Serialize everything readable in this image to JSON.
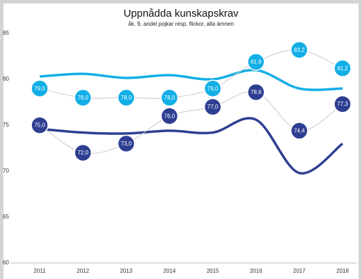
{
  "chart_data": {
    "type": "line",
    "title": "Uppnådda kunskapskrav",
    "subtitle": "åk. 9, andel pojkar resp. flickor, alla ämnen",
    "categories": [
      "2011",
      "2012",
      "2013",
      "2014",
      "2015",
      "2016",
      "2017",
      "2018"
    ],
    "series": [
      {
        "color": "#12aee6",
        "style": "smooth",
        "values": [
          80.3,
          80.6,
          80.15,
          80.45,
          80.0,
          81.0,
          79.0,
          79.0
        ]
      },
      {
        "color": "#2e3f92",
        "style": "smooth",
        "values": [
          74.6,
          74.2,
          74.1,
          74.4,
          74.2,
          75.6,
          69.8,
          73.0
        ]
      },
      {
        "color": "#12aee6",
        "style": "markers",
        "values": [
          79.0,
          78.0,
          78.0,
          78.0,
          79.0,
          81.9,
          83.2,
          81.2
        ],
        "value_labels": [
          "79,0",
          "78,0",
          "78,0",
          "78,0",
          "79,0",
          "81,9",
          "83,2",
          "81,2"
        ]
      },
      {
        "color": "#2e3f92",
        "style": "markers",
        "values": [
          75.0,
          72.0,
          73.0,
          76.0,
          77.0,
          78.6,
          74.4,
          77.3
        ],
        "value_labels": [
          "75,0",
          "72,0",
          "73,0",
          "76,0",
          "77,0",
          "78,6",
          "74,4",
          "77,3"
        ]
      }
    ],
    "ylim": [
      60,
      85
    ],
    "yticks": [
      60,
      65,
      70,
      75,
      80,
      85
    ],
    "grid": false
  }
}
